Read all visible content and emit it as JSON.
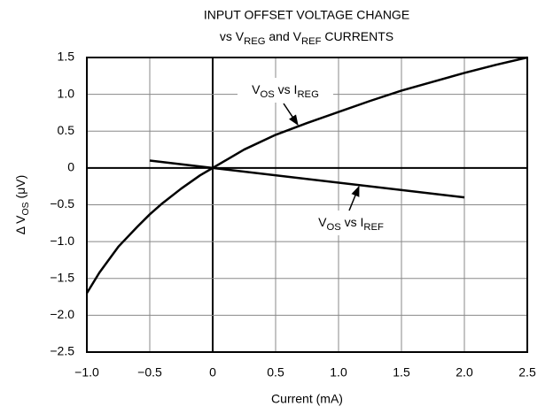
{
  "chart_data": {
    "type": "line",
    "title": [
      "INPUT OFFSET VOLTAGE CHANGE",
      [
        "vs V",
        "REG",
        " and V",
        "REF",
        " CURRENTS"
      ]
    ],
    "x_label": "Current (mA)",
    "y_label": [
      "Δ V",
      "OS",
      " (μV)"
    ],
    "xlim": [
      -1.0,
      2.5
    ],
    "ylim": [
      -2.5,
      1.5
    ],
    "xticks": [
      {
        "value": -1.0,
        "label": "−1.0"
      },
      {
        "value": -0.5,
        "label": "−0.5"
      },
      0,
      0.5,
      {
        "value": 1.0,
        "label": "1.0"
      },
      1.5,
      {
        "value": 2.0,
        "label": "2.0"
      },
      2.5
    ],
    "yticks": [
      {
        "value": -2.5,
        "label": "−2.5"
      },
      {
        "value": -2.0,
        "label": "−2.0"
      },
      {
        "value": -1.5,
        "label": "−1.5"
      },
      {
        "value": -1.0,
        "label": "−1.0"
      },
      {
        "value": -0.5,
        "label": "−0.5"
      },
      0,
      0.5,
      {
        "value": 1.0,
        "label": "1.0"
      },
      1.5
    ],
    "grid": true,
    "series": [
      {
        "color": "#000000",
        "x": [
          -1.0,
          -0.9,
          -0.75,
          -0.6,
          -0.5,
          -0.4,
          -0.25,
          -0.1,
          0,
          0.25,
          0.5,
          0.75,
          1.0,
          1.25,
          1.5,
          1.75,
          2.0,
          2.25,
          2.5
        ],
        "values": [
          -1.7,
          -1.42,
          -1.07,
          -0.8,
          -0.63,
          -0.48,
          -0.28,
          -0.1,
          0,
          0.25,
          0.45,
          0.61,
          0.76,
          0.91,
          1.05,
          1.17,
          1.29,
          1.4,
          1.5
        ]
      },
      {
        "color": "#000000",
        "x": [
          -0.5,
          0,
          2.0
        ],
        "values": [
          0.1,
          0,
          -0.4
        ]
      }
    ],
    "annotations": [
      [
        "V",
        "OS",
        " vs I",
        "REG"
      ],
      [
        "V",
        "OS",
        " vs I",
        "REF"
      ]
    ]
  }
}
